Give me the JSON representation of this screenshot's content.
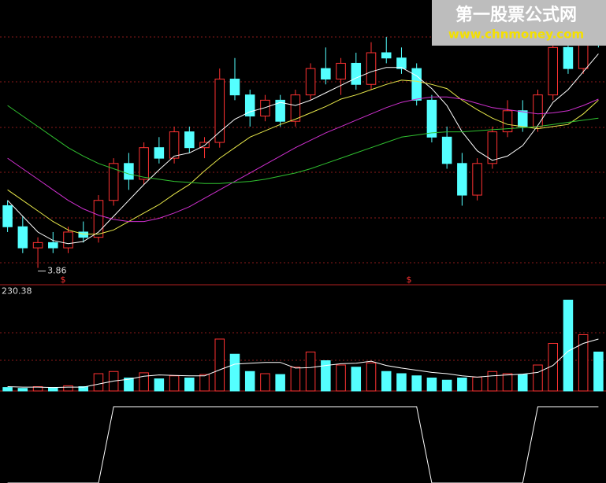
{
  "chart_data": {
    "type": "candlestick",
    "watermark": {
      "title": "第一股票公式网",
      "url": "www.chnmoney.com"
    },
    "low_label": 3.86,
    "markers": [
      "$",
      "$"
    ],
    "ylim": [
      3.7,
      6.4
    ],
    "up_color": "#ff3232",
    "down_color": "#54ffff",
    "open": [
      4.45,
      4.25,
      4.05,
      4.1,
      4.05,
      4.2,
      4.15,
      4.5,
      4.85,
      4.7,
      5.0,
      4.9,
      5.15,
      5.0,
      5.05,
      5.65,
      5.5,
      5.3,
      5.45,
      5.25,
      5.5,
      5.75,
      5.65,
      5.8,
      5.6,
      5.9,
      5.85,
      5.75,
      5.45,
      5.1,
      4.85,
      4.55,
      4.85,
      5.15,
      5.35,
      5.2,
      5.5,
      5.95,
      5.75,
      6.2
    ],
    "high": [
      4.5,
      4.35,
      4.15,
      4.2,
      4.25,
      4.3,
      4.55,
      4.9,
      4.95,
      5.05,
      5.1,
      5.2,
      5.2,
      5.1,
      5.75,
      5.85,
      5.55,
      5.5,
      5.5,
      5.55,
      5.8,
      5.95,
      5.85,
      5.9,
      6.0,
      6.05,
      5.95,
      5.8,
      5.5,
      5.2,
      4.95,
      4.9,
      5.2,
      5.45,
      5.45,
      5.55,
      6.0,
      6.05,
      6.4,
      6.35
    ],
    "low": [
      4.2,
      4.0,
      3.86,
      4.0,
      4.0,
      4.1,
      4.1,
      4.45,
      4.6,
      4.65,
      4.85,
      4.85,
      4.95,
      4.9,
      5.0,
      5.45,
      5.2,
      5.25,
      5.2,
      5.2,
      5.45,
      5.6,
      5.5,
      5.55,
      5.55,
      5.8,
      5.7,
      5.4,
      5.05,
      4.8,
      4.45,
      4.5,
      4.8,
      5.1,
      5.15,
      5.15,
      5.45,
      5.7,
      5.7,
      5.95
    ],
    "close": [
      4.25,
      4.05,
      4.1,
      4.05,
      4.2,
      4.15,
      4.5,
      4.85,
      4.7,
      5.0,
      4.9,
      5.15,
      5.0,
      5.05,
      5.65,
      5.5,
      5.3,
      5.45,
      5.25,
      5.5,
      5.75,
      5.65,
      5.8,
      5.6,
      5.9,
      5.85,
      5.75,
      5.45,
      5.1,
      4.85,
      4.55,
      4.85,
      5.15,
      5.35,
      5.2,
      5.5,
      5.95,
      5.75,
      6.2,
      6.05
    ],
    "series": [
      {
        "color": "#ffffff",
        "values": [
          4.5,
          4.35,
          4.2,
          4.12,
          4.09,
          4.11,
          4.2,
          4.35,
          4.5,
          4.65,
          4.79,
          4.92,
          4.95,
          5.02,
          5.15,
          5.27,
          5.34,
          5.38,
          5.43,
          5.4,
          5.45,
          5.52,
          5.59,
          5.66,
          5.72,
          5.76,
          5.76,
          5.68,
          5.56,
          5.4,
          5.15,
          4.97,
          4.88,
          4.92,
          5.02,
          5.21,
          5.43,
          5.55,
          5.72,
          5.89
        ]
      },
      {
        "color": "#e8e84a",
        "values": [
          4.6,
          4.5,
          4.4,
          4.3,
          4.22,
          4.18,
          4.18,
          4.22,
          4.3,
          4.38,
          4.46,
          4.56,
          4.65,
          4.78,
          4.9,
          5.0,
          5.1,
          5.16,
          5.22,
          5.27,
          5.33,
          5.39,
          5.46,
          5.5,
          5.55,
          5.6,
          5.64,
          5.63,
          5.6,
          5.56,
          5.45,
          5.36,
          5.28,
          5.22,
          5.2,
          5.18,
          5.2,
          5.22,
          5.32,
          5.45
        ]
      },
      {
        "color": "#d030d0",
        "values": [
          4.9,
          4.8,
          4.7,
          4.6,
          4.5,
          4.42,
          4.36,
          4.32,
          4.3,
          4.3,
          4.33,
          4.38,
          4.44,
          4.52,
          4.6,
          4.68,
          4.76,
          4.84,
          4.92,
          5.0,
          5.07,
          5.14,
          5.2,
          5.26,
          5.32,
          5.38,
          5.43,
          5.46,
          5.48,
          5.48,
          5.46,
          5.42,
          5.38,
          5.36,
          5.34,
          5.32,
          5.33,
          5.35,
          5.4,
          5.46
        ]
      },
      {
        "color": "#30c030",
        "values": [
          5.4,
          5.3,
          5.2,
          5.1,
          5.0,
          4.92,
          4.85,
          4.8,
          4.75,
          4.72,
          4.7,
          4.68,
          4.67,
          4.66,
          4.66,
          4.67,
          4.68,
          4.7,
          4.73,
          4.76,
          4.8,
          4.85,
          4.9,
          4.95,
          5.0,
          5.05,
          5.1,
          5.12,
          5.14,
          5.15,
          5.15,
          5.16,
          5.17,
          5.18,
          5.19,
          5.2,
          5.22,
          5.24,
          5.26,
          5.28
        ]
      }
    ],
    "volume": {
      "ylim": [
        0,
        240
      ],
      "yticks": [
        230.38
      ],
      "values": [
        8,
        6,
        10,
        8,
        12,
        10,
        40,
        45,
        30,
        42,
        28,
        35,
        30,
        38,
        120,
        85,
        45,
        40,
        38,
        55,
        90,
        70,
        60,
        55,
        65,
        45,
        40,
        35,
        30,
        25,
        30,
        32,
        45,
        40,
        38,
        60,
        110,
        210,
        130,
        90
      ],
      "ma": {
        "color": "#ffffff",
        "values": [
          10,
          9,
          9,
          8,
          9,
          9,
          16,
          23,
          27,
          34,
          37,
          36,
          35,
          35,
          49,
          62,
          64,
          66,
          66,
          53,
          54,
          59,
          63,
          64,
          69,
          59,
          53,
          48,
          43,
          40,
          35,
          32,
          35,
          37,
          39,
          43,
          59,
          92,
          110,
          120
        ]
      }
    },
    "signal": {
      "ylim": [
        0,
        1
      ],
      "color": "#ffffff",
      "values": [
        0,
        0,
        0,
        0,
        0,
        0,
        0,
        1,
        1,
        1,
        1,
        1,
        1,
        1,
        1,
        1,
        1,
        1,
        1,
        1,
        1,
        1,
        1,
        1,
        1,
        1,
        1,
        1,
        0,
        0,
        0,
        0,
        0,
        0,
        0,
        1,
        1,
        1,
        1,
        1
      ]
    }
  }
}
